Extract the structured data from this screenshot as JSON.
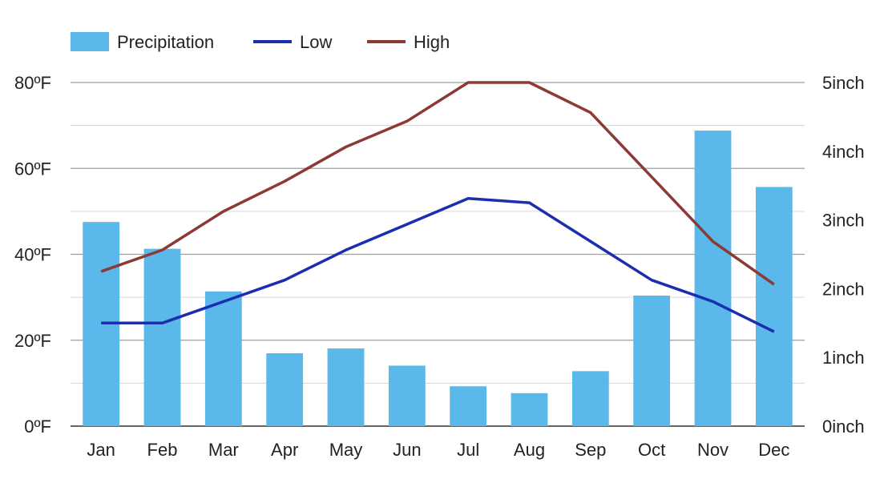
{
  "chart_data": {
    "type": "bar",
    "categories": [
      "Jan",
      "Feb",
      "Mar",
      "Apr",
      "May",
      "Jun",
      "Jul",
      "Aug",
      "Sep",
      "Oct",
      "Nov",
      "Dec"
    ],
    "series": [
      {
        "name": "Precipitation",
        "type": "bar",
        "axis": "right",
        "color": "#5ab8eb",
        "values": [
          2.97,
          2.58,
          1.96,
          1.06,
          1.13,
          0.88,
          0.58,
          0.48,
          0.8,
          1.9,
          4.3,
          3.48
        ]
      },
      {
        "name": "Low",
        "type": "line",
        "axis": "left",
        "color": "#1a2eaf",
        "values": [
          24,
          24,
          29,
          34,
          41,
          47,
          53,
          52,
          43,
          34,
          29,
          22
        ]
      },
      {
        "name": "High",
        "type": "line",
        "axis": "left",
        "color": "#8b3a35",
        "values": [
          36,
          41,
          50,
          57,
          65,
          71,
          80,
          80,
          73,
          58,
          43,
          33
        ]
      }
    ],
    "y_left": {
      "ticks": [
        0,
        20,
        40,
        60,
        80
      ],
      "tick_labels": [
        "0ºF",
        "20ºF",
        "40ºF",
        "60ºF",
        "80ºF"
      ],
      "ylim": [
        0,
        80
      ]
    },
    "y_right": {
      "ticks": [
        0,
        1,
        2,
        3,
        4,
        5
      ],
      "tick_labels": [
        "0inch",
        "1inch",
        "2inch",
        "3inch",
        "4inch",
        "5inch"
      ],
      "ylim": [
        0,
        5
      ]
    },
    "grid": true,
    "legend_position": "top-left"
  }
}
